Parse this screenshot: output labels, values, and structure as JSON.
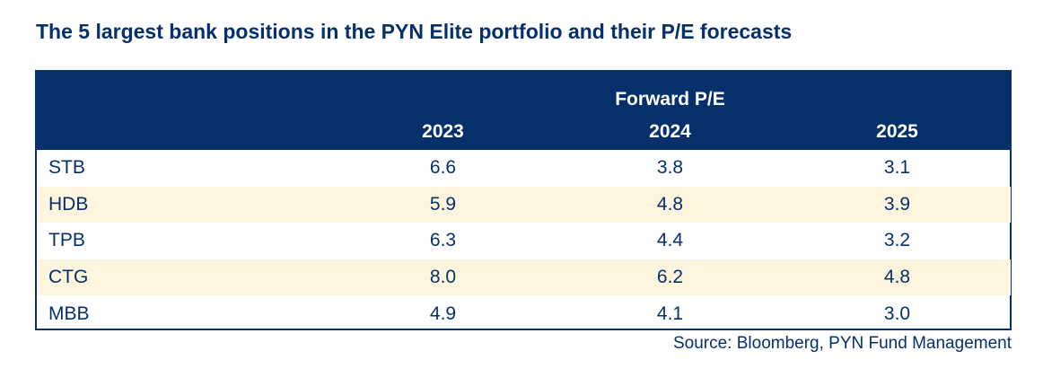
{
  "chart_data": {
    "type": "table",
    "title": "The 5 largest bank positions in the PYN Elite portfolio and their P/E forecasts",
    "group_header": "Forward P/E",
    "columns": [
      "2023",
      "2024",
      "2025"
    ],
    "rows": [
      {
        "name": "STB",
        "values": [
          "6.6",
          "3.8",
          "3.1"
        ]
      },
      {
        "name": "HDB",
        "values": [
          "5.9",
          "4.8",
          "3.9"
        ]
      },
      {
        "name": "TPB",
        "values": [
          "6.3",
          "4.4",
          "3.2"
        ]
      },
      {
        "name": "CTG",
        "values": [
          "8.0",
          "6.2",
          "4.8"
        ]
      },
      {
        "name": "MBB",
        "values": [
          "4.9",
          "4.1",
          "3.0"
        ]
      }
    ],
    "source": "Source: Bloomberg, PYN Fund Management"
  },
  "colors": {
    "header_bg": "#06306c",
    "text": "#06306c",
    "stripe": "#fdf5dd"
  }
}
